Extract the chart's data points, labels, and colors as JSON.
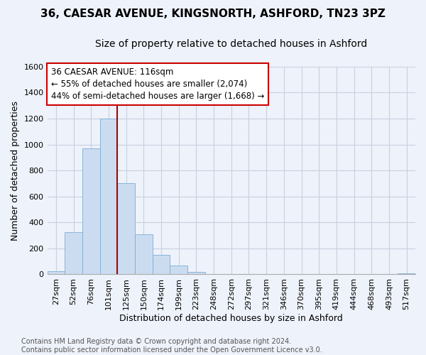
{
  "title": "36, CAESAR AVENUE, KINGSNORTH, ASHFORD, TN23 3PZ",
  "subtitle": "Size of property relative to detached houses in Ashford",
  "xlabel": "Distribution of detached houses by size in Ashford",
  "ylabel": "Number of detached properties",
  "categories": [
    "27sqm",
    "52sqm",
    "76sqm",
    "101sqm",
    "125sqm",
    "150sqm",
    "174sqm",
    "199sqm",
    "223sqm",
    "248sqm",
    "272sqm",
    "297sqm",
    "321sqm",
    "346sqm",
    "370sqm",
    "395sqm",
    "419sqm",
    "444sqm",
    "468sqm",
    "493sqm",
    "517sqm"
  ],
  "values": [
    25,
    325,
    970,
    1200,
    700,
    310,
    150,
    70,
    20,
    2,
    2,
    0,
    0,
    0,
    0,
    5,
    0,
    0,
    0,
    0,
    8
  ],
  "bar_color": "#ccdcf0",
  "bar_edge_color": "#7aadd4",
  "vline_color": "#aa0000",
  "vline_x": 3.5,
  "annotation_text": "36 CAESAR AVENUE: 116sqm\n← 55% of detached houses are smaller (2,074)\n44% of semi-detached houses are larger (1,668) →",
  "annotation_box_color": "#ffffff",
  "annotation_box_edge": "#cc0000",
  "ylim": [
    0,
    1600
  ],
  "yticks": [
    0,
    200,
    400,
    600,
    800,
    1000,
    1200,
    1400,
    1600
  ],
  "bg_color": "#eef2fa",
  "grid_color": "#c8d0e0",
  "footnote": "Contains HM Land Registry data © Crown copyright and database right 2024.\nContains public sector information licensed under the Open Government Licence v3.0.",
  "title_fontsize": 11,
  "subtitle_fontsize": 10,
  "xlabel_fontsize": 9,
  "ylabel_fontsize": 9,
  "tick_fontsize": 8,
  "annot_fontsize": 8.5,
  "footnote_fontsize": 7
}
